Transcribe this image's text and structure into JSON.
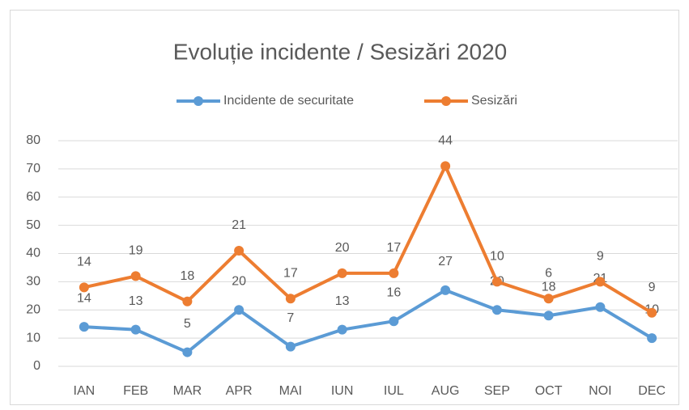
{
  "chart_data": {
    "type": "line",
    "stacked": true,
    "title": "Evoluție incidente / Sesizări 2020",
    "categories": [
      "IAN",
      "FEB",
      "MAR",
      "APR",
      "MAI",
      "IUN",
      "IUL",
      "AUG",
      "SEP",
      "OCT",
      "NOI",
      "DEC"
    ],
    "series": [
      {
        "name": "Incidente de securitate",
        "color": "#5b9bd5",
        "values": [
          14,
          13,
          5,
          20,
          7,
          13,
          16,
          27,
          20,
          18,
          21,
          10
        ]
      },
      {
        "name": "Sesizări",
        "color": "#ed7d31",
        "values": [
          14,
          19,
          18,
          21,
          17,
          20,
          17,
          44,
          10,
          6,
          9,
          9
        ]
      }
    ],
    "ylim": [
      0,
      80
    ],
    "yticks": [
      0,
      10,
      20,
      30,
      40,
      50,
      60,
      70,
      80
    ],
    "grid": true,
    "legend": "top"
  }
}
